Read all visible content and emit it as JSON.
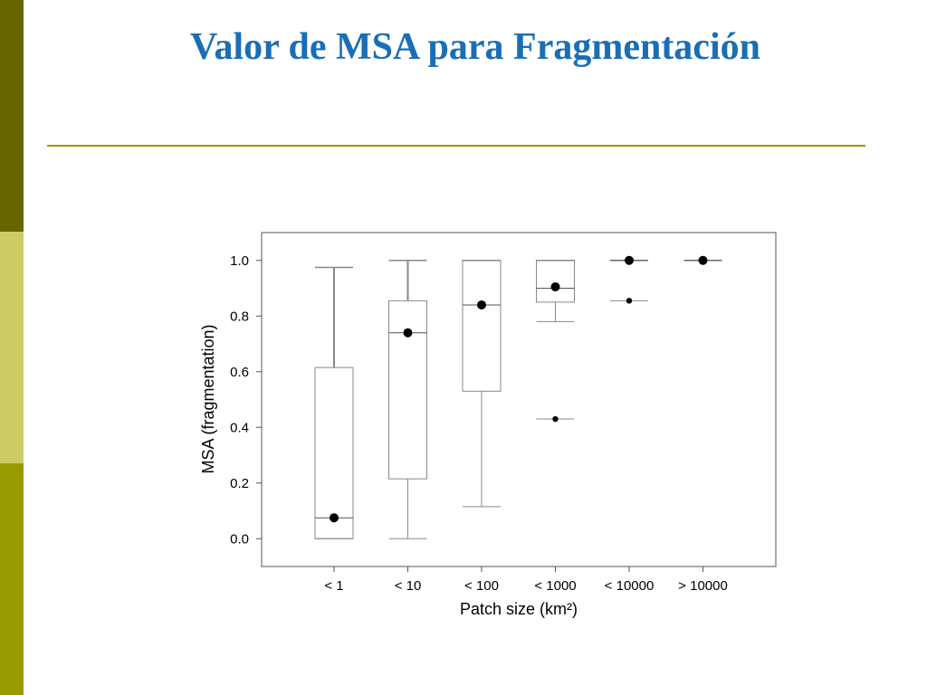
{
  "slide": {
    "title": "Valor de MSA para Fragmentación",
    "colors": {
      "title": "#1a6eb5",
      "rule": "#999900",
      "sidebar": [
        "#666600",
        "#cccc66",
        "#999900"
      ]
    }
  },
  "chart_data": {
    "type": "box",
    "xlabel": "Patch size (km²)",
    "ylabel": "MSA (fragmentation)",
    "ylim": [
      -0.1,
      1.1
    ],
    "yticks": [
      0.0,
      0.2,
      0.4,
      0.6,
      0.8,
      1.0
    ],
    "ytick_labels": [
      "0.0",
      "0.2",
      "0.4",
      "0.6",
      "0.8",
      "1.0"
    ],
    "grid": false,
    "categories": [
      "< 1",
      "< 10",
      "< 100",
      "< 1000",
      "< 10000",
      "> 10000"
    ],
    "boxes": [
      {
        "category": "< 1",
        "whisker_low": 0.0,
        "q1": 0.0,
        "median": 0.075,
        "q3": 0.615,
        "whisker_high": 0.975,
        "mean": 0.075
      },
      {
        "category": "< 10",
        "whisker_low": 0.0,
        "q1": 0.215,
        "median": 0.74,
        "q3": 0.855,
        "whisker_high": 1.0,
        "mean": 0.74
      },
      {
        "category": "< 100",
        "whisker_low": 0.115,
        "q1": 0.53,
        "median": 0.84,
        "q3": 1.0,
        "whisker_high": 1.0,
        "mean": 0.84
      },
      {
        "category": "< 1000",
        "whisker_low": 0.78,
        "q1": 0.85,
        "median": 0.9,
        "q3": 1.0,
        "whisker_high": 1.0,
        "mean": 0.905
      },
      {
        "category": "< 10000",
        "whisker_low": 1.0,
        "q1": 1.0,
        "median": 1.0,
        "q3": 1.0,
        "whisker_high": 1.0,
        "mean": 1.0
      },
      {
        "category": "> 10000",
        "whisker_low": 1.0,
        "q1": 1.0,
        "median": 1.0,
        "q3": 1.0,
        "whisker_high": 1.0,
        "mean": 1.0
      }
    ],
    "outliers": [
      {
        "category": "< 1000",
        "value": 0.43
      },
      {
        "category": "< 10000",
        "value": 0.855
      }
    ]
  }
}
